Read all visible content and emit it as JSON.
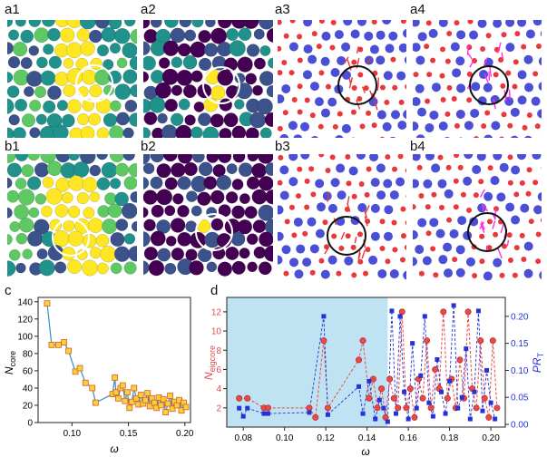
{
  "panel_labels": {
    "a1": "a1",
    "a2": "a2",
    "a3": "a3",
    "a4": "a4",
    "b1": "b1",
    "b2": "b2",
    "b3": "b3",
    "b4": "b4",
    "c": "c",
    "d": "d"
  },
  "colors": {
    "viridis_yellow": "#fde725",
    "viridis_green": "#5ec962",
    "viridis_teal": "#21918c",
    "viridis_blue": "#3b528b",
    "viridis_purple": "#440154",
    "atom_red": "#e8383b",
    "atom_blue": "#4a4fd6",
    "arrow_red": "#e8383b",
    "arrow_magenta": "#ff2ee6",
    "shade": "#bfe3f3",
    "line_c": "#3a8fc4",
    "marker_c_fill": "#f2d33a",
    "marker_c_edge": "#e25a2a",
    "series_red": "#e84a4a",
    "series_blue": "#2433d6"
  },
  "chart_data": [
    {
      "panel": "c",
      "type": "line",
      "xlabel": "ω",
      "ylabel": "N",
      "ylabel_sub": "core",
      "xlim": [
        0.07,
        0.205
      ],
      "ylim": [
        0,
        145
      ],
      "xticks": [
        "0.10",
        "0.15",
        "0.20"
      ],
      "xtick_values": [
        0.1,
        0.15,
        0.2
      ],
      "yticks": [
        "0",
        "20",
        "40",
        "60",
        "80",
        "100",
        "120",
        "140"
      ],
      "ytick_values": [
        0,
        20,
        40,
        60,
        80,
        100,
        120,
        140
      ],
      "x": [
        0.078,
        0.082,
        0.088,
        0.093,
        0.097,
        0.103,
        0.107,
        0.112,
        0.118,
        0.121,
        0.136,
        0.138,
        0.139,
        0.141,
        0.143,
        0.145,
        0.147,
        0.149,
        0.151,
        0.153,
        0.155,
        0.157,
        0.159,
        0.161,
        0.163,
        0.165,
        0.167,
        0.169,
        0.171,
        0.173,
        0.175,
        0.177,
        0.179,
        0.181,
        0.183,
        0.185,
        0.187,
        0.189,
        0.191,
        0.193,
        0.195,
        0.197,
        0.199,
        0.201
      ],
      "y": [
        138,
        90,
        90,
        93,
        83,
        59,
        63,
        46,
        40,
        23,
        33,
        52,
        35,
        28,
        40,
        43,
        25,
        35,
        17,
        24,
        40,
        28,
        21,
        32,
        22,
        26,
        34,
        19,
        28,
        23,
        17,
        29,
        20,
        27,
        12,
        22,
        31,
        16,
        24,
        20,
        26,
        14,
        23,
        18
      ]
    },
    {
      "panel": "d",
      "type": "line",
      "xlabel": "ω",
      "ylabel_left": "N",
      "ylabel_left_sub": "eigcore",
      "ylabel_right": "PR",
      "ylabel_right_sub": "T",
      "xlim": [
        0.072,
        0.207
      ],
      "ylim_left": [
        0,
        13.5
      ],
      "ylim_right": [
        -0.005,
        0.235
      ],
      "shaded_x_range": [
        0.072,
        0.15
      ],
      "xticks": [
        "0.08",
        "0.10",
        "0.12",
        "0.14",
        "0.16",
        "0.18",
        "0.20"
      ],
      "xtick_values": [
        0.08,
        0.1,
        0.12,
        0.14,
        0.16,
        0.18,
        0.2
      ],
      "yticks_left": [
        "2",
        "4",
        "6",
        "8",
        "10",
        "12"
      ],
      "ytick_left_values": [
        2,
        4,
        6,
        8,
        10,
        12
      ],
      "yticks_right": [
        "0.00",
        "0.05",
        "0.10",
        "0.15",
        "0.20"
      ],
      "ytick_right_values": [
        0.0,
        0.05,
        0.1,
        0.15,
        0.2
      ],
      "series": [
        {
          "axis": "left",
          "x": [
            0.078,
            0.082,
            0.09,
            0.092,
            0.112,
            0.115,
            0.119,
            0.121,
            0.136,
            0.138,
            0.141,
            0.143,
            0.145,
            0.147,
            0.149,
            0.151,
            0.153,
            0.155,
            0.157,
            0.159,
            0.161,
            0.163,
            0.165,
            0.167,
            0.169,
            0.171,
            0.173,
            0.175,
            0.177,
            0.179,
            0.181,
            0.183,
            0.185,
            0.187,
            0.189,
            0.191,
            0.193,
            0.195,
            0.197,
            0.199,
            0.201,
            0.203
          ],
          "y": [
            3,
            3,
            2,
            2,
            2,
            1,
            9,
            2,
            7,
            9,
            3,
            5,
            2,
            4,
            1,
            5,
            3,
            2,
            12,
            2,
            4,
            1,
            5,
            3,
            9,
            2,
            6,
            4,
            12,
            3,
            5,
            2,
            7,
            3,
            12,
            4,
            2,
            9,
            3,
            1,
            9,
            2
          ]
        },
        {
          "axis": "right",
          "x": [
            0.078,
            0.08,
            0.082,
            0.09,
            0.092,
            0.112,
            0.119,
            0.121,
            0.136,
            0.138,
            0.141,
            0.144,
            0.146,
            0.148,
            0.15,
            0.152,
            0.154,
            0.156,
            0.158,
            0.16,
            0.162,
            0.164,
            0.166,
            0.168,
            0.17,
            0.172,
            0.174,
            0.176,
            0.178,
            0.18,
            0.182,
            0.184,
            0.186,
            0.188,
            0.19,
            0.192,
            0.194,
            0.196,
            0.198,
            0.2,
            0.202
          ],
          "y": [
            0.03,
            0.015,
            0.03,
            0.02,
            0.02,
            0.022,
            0.2,
            0.018,
            0.07,
            0.02,
            0.08,
            0.01,
            0.045,
            0.03,
            0.005,
            0.21,
            0.02,
            0.2,
            0.06,
            0.01,
            0.15,
            0.03,
            0.09,
            0.2,
            0.04,
            0.015,
            0.12,
            0.06,
            0.02,
            0.08,
            0.22,
            0.03,
            0.05,
            0.14,
            0.01,
            0.06,
            0.21,
            0.025,
            0.1,
            0.04,
            0.01
          ]
        }
      ]
    }
  ]
}
